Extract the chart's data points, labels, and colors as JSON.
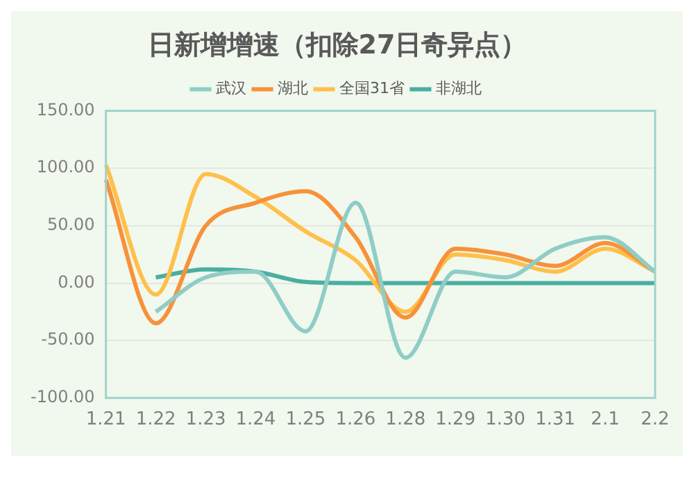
{
  "chart_data": {
    "type": "line",
    "title": "日新增增速（扣除27日奇异点）",
    "categories": [
      "1.21",
      "1.22",
      "1.23",
      "1.24",
      "1.25",
      "1.26",
      "1.28",
      "1.29",
      "1.30",
      "1.31",
      "2.1",
      "2.2"
    ],
    "series": [
      {
        "name": "武汉",
        "color": "#8fcdc6",
        "values": [
          null,
          -25,
          5,
          10,
          -42,
          70,
          -65,
          10,
          5,
          30,
          40,
          10
        ]
      },
      {
        "name": "湖北",
        "color": "#f7923a",
        "values": [
          90,
          -35,
          50,
          70,
          80,
          40,
          -30,
          30,
          25,
          15,
          35,
          10
        ]
      },
      {
        "name": "全国31省",
        "color": "#ffc04a",
        "values": [
          103,
          -10,
          95,
          75,
          45,
          20,
          -25,
          25,
          20,
          10,
          30,
          10
        ]
      },
      {
        "name": "非湖北",
        "color": "#4aaea0",
        "values": [
          null,
          5,
          12,
          10,
          1,
          0,
          0,
          0,
          0,
          0,
          0,
          0
        ]
      }
    ],
    "ylim": [
      -100,
      150
    ],
    "yticks": [
      {
        "value": -100,
        "label": "-100.00"
      },
      {
        "value": -50,
        "label": "-50.00"
      },
      {
        "value": 0,
        "label": "0.00"
      },
      {
        "value": 50,
        "label": "50.00"
      },
      {
        "value": 100,
        "label": "100.00"
      },
      {
        "value": 150,
        "label": "150.00"
      }
    ],
    "grid": "y",
    "legend": "top",
    "marker": "none",
    "line_style": "solid"
  }
}
